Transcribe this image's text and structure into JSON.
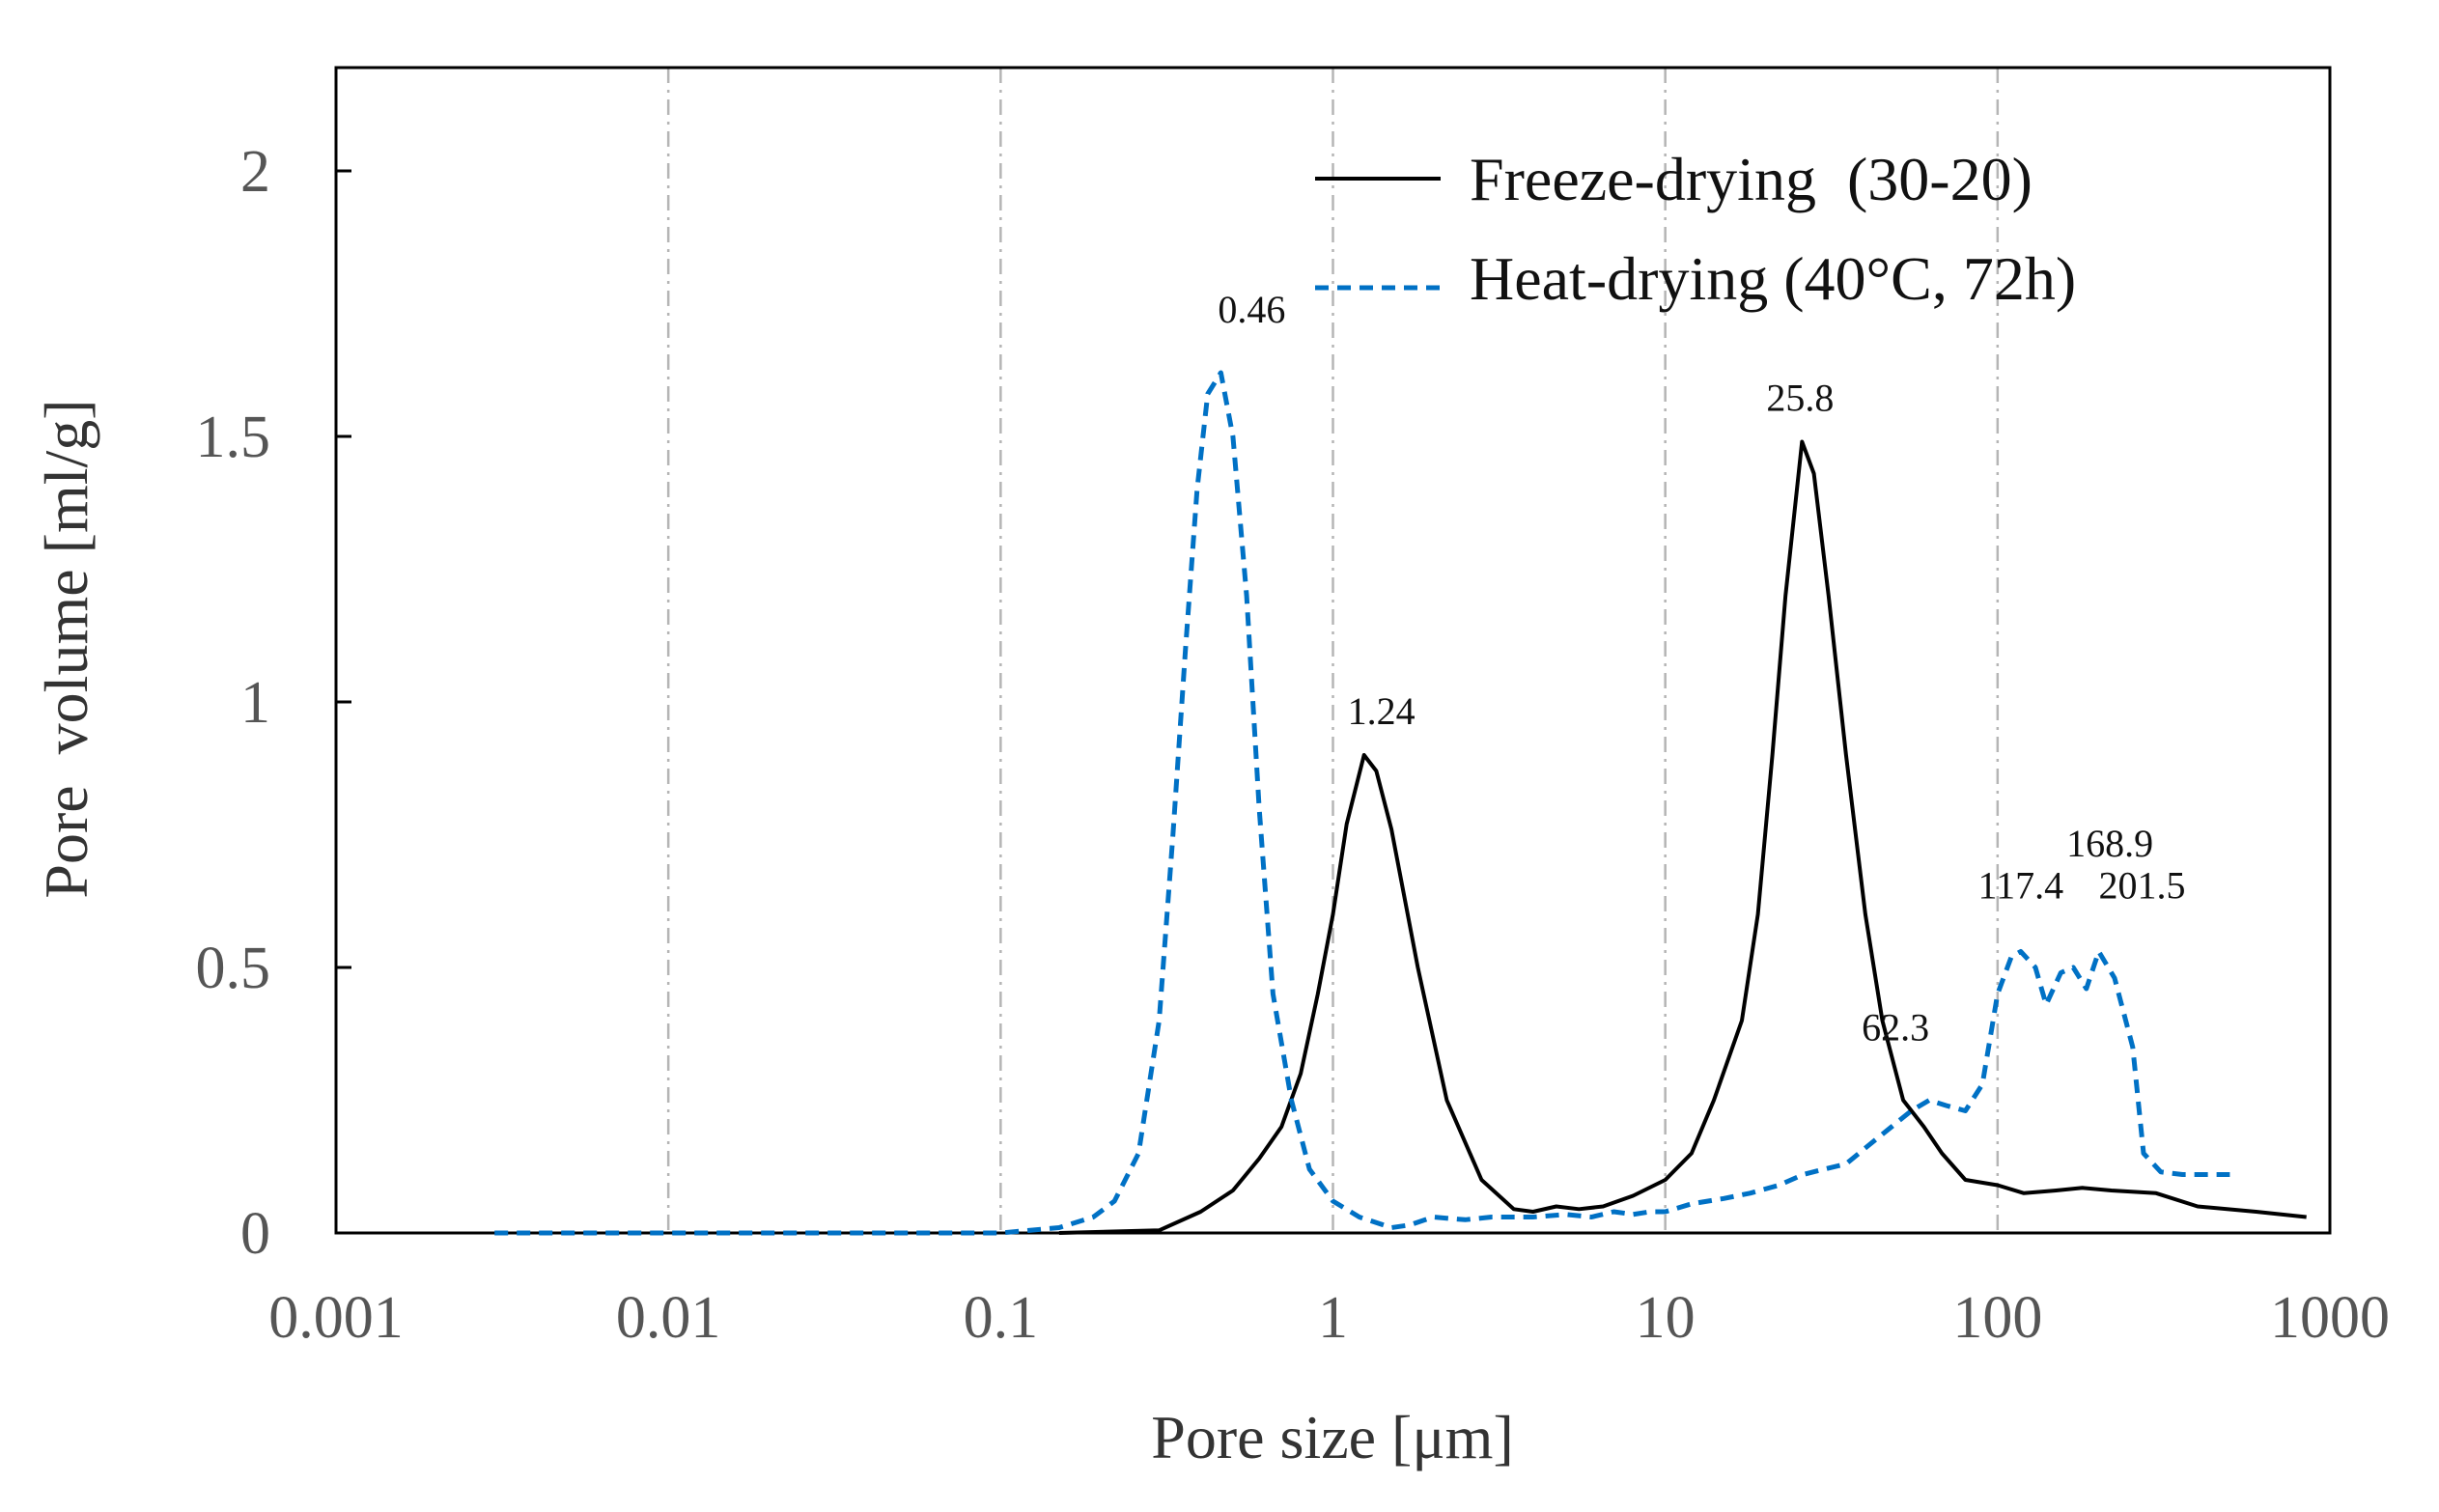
{
  "chart_data": {
    "type": "line",
    "title": "",
    "xlabel": "Pore size [μm]",
    "ylabel": "Pore  volume [ml/g]",
    "xscale": "log",
    "xlim": [
      0.001,
      1000
    ],
    "ylim": [
      0,
      2.2
    ],
    "x_ticks": [
      {
        "value": 0.001,
        "label": "0.001"
      },
      {
        "value": 0.01,
        "label": "0.01"
      },
      {
        "value": 0.1,
        "label": "0.1"
      },
      {
        "value": 1,
        "label": "1"
      },
      {
        "value": 10,
        "label": "10"
      },
      {
        "value": 100,
        "label": "100"
      },
      {
        "value": 1000,
        "label": "1000"
      }
    ],
    "y_ticks": [
      {
        "value": 0,
        "label": "0"
      },
      {
        "value": 0.5,
        "label": "0.5"
      },
      {
        "value": 1,
        "label": "1"
      },
      {
        "value": 1.5,
        "label": "1.5"
      },
      {
        "value": 2,
        "label": "2"
      }
    ],
    "grid": "vertical dash-dot at decades",
    "legend_position": "top-right",
    "series": [
      {
        "name": "Freeze-drying  (30-20)",
        "color": "#000000",
        "dash": "solid",
        "points": [
          [
            0.15,
            0
          ],
          [
            0.3,
            0.005
          ],
          [
            0.4,
            0.04
          ],
          [
            0.5,
            0.08
          ],
          [
            0.6,
            0.14
          ],
          [
            0.7,
            0.2
          ],
          [
            0.8,
            0.3
          ],
          [
            0.9,
            0.45
          ],
          [
            1.0,
            0.6
          ],
          [
            1.1,
            0.77
          ],
          [
            1.24,
            0.9
          ],
          [
            1.35,
            0.87
          ],
          [
            1.5,
            0.76
          ],
          [
            1.8,
            0.5
          ],
          [
            2.2,
            0.25
          ],
          [
            2.8,
            0.1
          ],
          [
            3.5,
            0.045
          ],
          [
            4.0,
            0.04
          ],
          [
            4.7,
            0.05
          ],
          [
            5.5,
            0.045
          ],
          [
            6.5,
            0.05
          ],
          [
            8,
            0.07
          ],
          [
            10,
            0.1
          ],
          [
            12,
            0.15
          ],
          [
            14,
            0.25
          ],
          [
            17,
            0.4
          ],
          [
            19,
            0.6
          ],
          [
            21,
            0.9
          ],
          [
            23,
            1.2
          ],
          [
            25.8,
            1.49
          ],
          [
            28,
            1.43
          ],
          [
            31,
            1.2
          ],
          [
            35,
            0.9
          ],
          [
            40,
            0.6
          ],
          [
            45,
            0.4
          ],
          [
            52,
            0.25
          ],
          [
            60,
            0.2
          ],
          [
            68,
            0.15
          ],
          [
            80,
            0.1
          ],
          [
            100,
            0.09
          ],
          [
            120,
            0.075
          ],
          [
            150,
            0.08
          ],
          [
            180,
            0.085
          ],
          [
            220,
            0.08
          ],
          [
            300,
            0.075
          ],
          [
            400,
            0.05
          ],
          [
            600,
            0.04
          ],
          [
            850,
            0.03
          ]
        ]
      },
      {
        "name": "Heat-drying (40°C, 72h)",
        "color": "#0071C5",
        "dash": "dashed",
        "points": [
          [
            0.003,
            0
          ],
          [
            0.1,
            0
          ],
          [
            0.15,
            0.01
          ],
          [
            0.19,
            0.03
          ],
          [
            0.22,
            0.06
          ],
          [
            0.26,
            0.15
          ],
          [
            0.3,
            0.4
          ],
          [
            0.33,
            0.75
          ],
          [
            0.36,
            1.1
          ],
          [
            0.39,
            1.4
          ],
          [
            0.42,
            1.58
          ],
          [
            0.46,
            1.62
          ],
          [
            0.5,
            1.5
          ],
          [
            0.55,
            1.2
          ],
          [
            0.6,
            0.8
          ],
          [
            0.66,
            0.45
          ],
          [
            0.75,
            0.25
          ],
          [
            0.85,
            0.12
          ],
          [
            1.0,
            0.06
          ],
          [
            1.2,
            0.03
          ],
          [
            1.5,
            0.01
          ],
          [
            1.7,
            0.015
          ],
          [
            2.0,
            0.03
          ],
          [
            2.5,
            0.025
          ],
          [
            3.0,
            0.03
          ],
          [
            4.0,
            0.03
          ],
          [
            5.0,
            0.035
          ],
          [
            6.0,
            0.03
          ],
          [
            7.0,
            0.04
          ],
          [
            8.0,
            0.035
          ],
          [
            9.0,
            0.04
          ],
          [
            10.0,
            0.04
          ],
          [
            12.0,
            0.055
          ],
          [
            15.0,
            0.065
          ],
          [
            18.0,
            0.075
          ],
          [
            22.0,
            0.09
          ],
          [
            26.0,
            0.11
          ],
          [
            30.0,
            0.12
          ],
          [
            35.0,
            0.13
          ],
          [
            40.0,
            0.16
          ],
          [
            48.0,
            0.2
          ],
          [
            55.0,
            0.23
          ],
          [
            62.3,
            0.25
          ],
          [
            70.0,
            0.24
          ],
          [
            80.0,
            0.23
          ],
          [
            90.0,
            0.28
          ],
          [
            100.0,
            0.45
          ],
          [
            110.0,
            0.52
          ],
          [
            117.4,
            0.53
          ],
          [
            130.0,
            0.5
          ],
          [
            140.0,
            0.43
          ],
          [
            155.0,
            0.49
          ],
          [
            168.9,
            0.5
          ],
          [
            185.0,
            0.46
          ],
          [
            201.5,
            0.53
          ],
          [
            225.0,
            0.48
          ],
          [
            255.0,
            0.35
          ],
          [
            275.0,
            0.15
          ],
          [
            310.0,
            0.115
          ],
          [
            360.0,
            0.11
          ],
          [
            420.0,
            0.11
          ],
          [
            500.0,
            0.11
          ]
        ]
      }
    ],
    "annotations": [
      {
        "text": "0.46",
        "x": 0.46,
        "y": 1.62
      },
      {
        "text": "1.24",
        "x": 1.24,
        "y": 0.9
      },
      {
        "text": "25.8",
        "x": 25.8,
        "y": 1.49
      },
      {
        "text": "62.3",
        "x": 62.3,
        "y": 0.25
      },
      {
        "text": "117.4",
        "x": 117.4,
        "y": 0.53
      },
      {
        "text": "168.9",
        "x": 168.9,
        "y": 0.5
      },
      {
        "text": "201.5",
        "x": 201.5,
        "y": 0.53
      }
    ]
  }
}
